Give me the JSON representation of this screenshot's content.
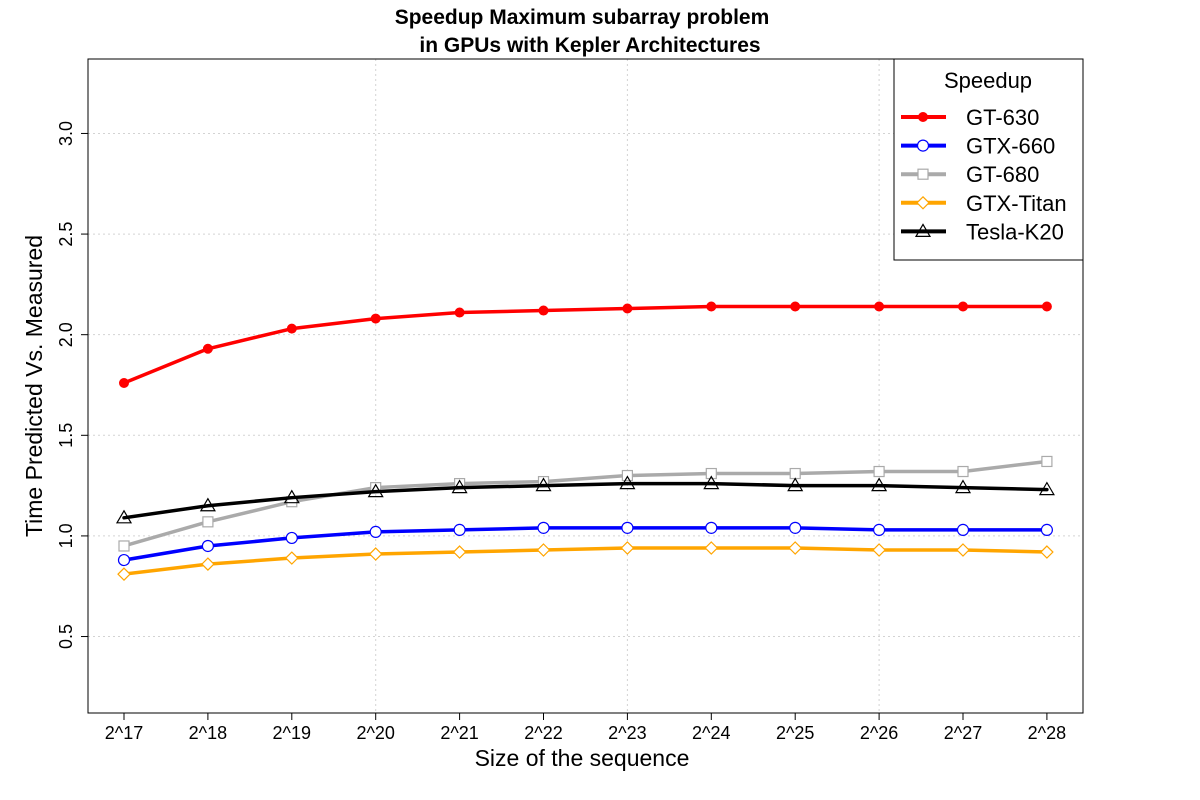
{
  "chart_data": {
    "type": "line",
    "title_lines": [
      "Speedup Maximum subarray problem",
      "in GPUs with Kepler Architectures"
    ],
    "xlabel": "Size of the sequence",
    "ylabel": "Time Predicted Vs. Measured",
    "categories": [
      "2^17",
      "2^18",
      "2^19",
      "2^20",
      "2^21",
      "2^22",
      "2^23",
      "2^24",
      "2^25",
      "2^26",
      "2^27",
      "2^28"
    ],
    "y_ticks": [
      "0.5",
      "1.0",
      "1.5",
      "2.0",
      "2.5",
      "3.0"
    ],
    "ylim": [
      0.12,
      3.37
    ],
    "grid": true,
    "legend": {
      "title": "Speedup",
      "position": "top-right"
    },
    "series": [
      {
        "name": "GT-630",
        "color": "#ff0000",
        "marker": "filled-circle",
        "values": [
          1.76,
          1.93,
          2.03,
          2.08,
          2.11,
          2.12,
          2.13,
          2.14,
          2.14,
          2.14,
          2.14,
          2.14
        ]
      },
      {
        "name": "GTX-660",
        "color": "#0000ff",
        "marker": "open-circle",
        "values": [
          0.88,
          0.95,
          0.99,
          1.02,
          1.03,
          1.04,
          1.04,
          1.04,
          1.04,
          1.03,
          1.03,
          1.03
        ]
      },
      {
        "name": "GT-680",
        "color": "#aaaaaa",
        "marker": "open-square",
        "values": [
          0.95,
          1.07,
          1.17,
          1.24,
          1.26,
          1.27,
          1.3,
          1.31,
          1.31,
          1.32,
          1.32,
          1.37
        ]
      },
      {
        "name": "GTX-Titan",
        "color": "#ffa500",
        "marker": "open-diamond",
        "values": [
          0.81,
          0.86,
          0.89,
          0.91,
          0.92,
          0.93,
          0.94,
          0.94,
          0.94,
          0.93,
          0.93,
          0.92
        ]
      },
      {
        "name": "Tesla-K20",
        "color": "#000000",
        "marker": "open-triangle",
        "values": [
          1.09,
          1.15,
          1.19,
          1.22,
          1.24,
          1.25,
          1.26,
          1.26,
          1.25,
          1.25,
          1.24,
          1.23
        ]
      }
    ]
  }
}
